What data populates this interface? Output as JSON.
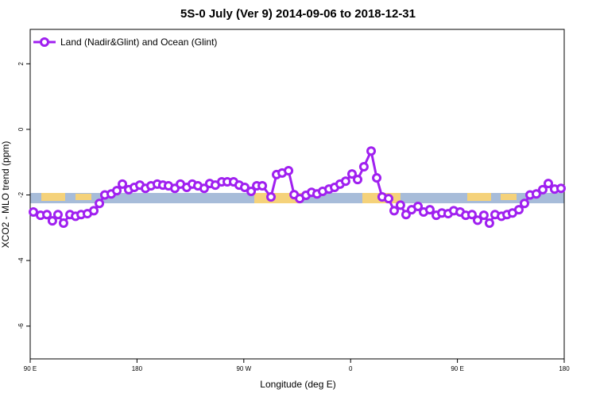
{
  "chart_data": {
    "type": "line",
    "title": "5S-0 July (Ver 9)   2014-09-06 to 2018-12-31",
    "x_label": "Longitude (deg E)",
    "y_label": "XCO2 - MLO trend (ppm)",
    "xlim": [
      90,
      540
    ],
    "ylim": [
      -7,
      3.05
    ],
    "xticks": [
      {
        "value": 90,
        "label": "90 E"
      },
      180,
      {
        "value": 270,
        "label": "90 W"
      },
      {
        "value": 360,
        "label": "0"
      },
      {
        "value": 450,
        "label": "90 E"
      },
      {
        "value": 540,
        "label": "180"
      }
    ],
    "yticks": [
      -6,
      -4,
      -2,
      0,
      2
    ],
    "legend_position": "upper left",
    "series": [
      {
        "name": "Land (Nadir&Glint) and Ocean (Glint)",
        "color": "#a020f0",
        "x": [
          92.7,
          98.7,
          104.1,
          108.7,
          113.4,
          118.1,
          123.5,
          128.2,
          132.9,
          138.2,
          143.6,
          148.3,
          152.9,
          158.3,
          163.0,
          167.7,
          173.0,
          177.7,
          182.4,
          187.1,
          191.8,
          197.1,
          201.8,
          206.5,
          211.9,
          216.6,
          221.9,
          226.6,
          231.3,
          236.6,
          241.3,
          246.0,
          251.4,
          256.1,
          261.4,
          266.1,
          270.8,
          276.2,
          280.9,
          285.6,
          292.9,
          297.6,
          302.3,
          307.7,
          312.4,
          317.1,
          322.4,
          327.1,
          331.7,
          336.4,
          341.8,
          346.5,
          351.1,
          355.8,
          361.2,
          365.9,
          371.2,
          377.3,
          382.0,
          386.6,
          392.0,
          396.7,
          402.0,
          406.7,
          411.4,
          416.8,
          421.5,
          426.8,
          432.2,
          436.9,
          442.2,
          446.9,
          452.3,
          457.0,
          462.3,
          467.0,
          472.3,
          477.0,
          481.7,
          487.1,
          491.8,
          496.4,
          501.8,
          506.5,
          511.2,
          516.5,
          521.9,
          526.6,
          531.9,
          537.3
        ],
        "values": [
          -2.52,
          -2.62,
          -2.6,
          -2.79,
          -2.6,
          -2.86,
          -2.6,
          -2.65,
          -2.6,
          -2.57,
          -2.48,
          -2.26,
          -2.0,
          -1.97,
          -1.87,
          -1.67,
          -1.84,
          -1.77,
          -1.7,
          -1.8,
          -1.72,
          -1.67,
          -1.7,
          -1.72,
          -1.8,
          -1.67,
          -1.77,
          -1.67,
          -1.72,
          -1.8,
          -1.65,
          -1.7,
          -1.6,
          -1.6,
          -1.6,
          -1.7,
          -1.77,
          -1.89,
          -1.72,
          -1.72,
          -2.06,
          -1.38,
          -1.33,
          -1.26,
          -1.99,
          -2.11,
          -2.01,
          -1.92,
          -1.97,
          -1.89,
          -1.82,
          -1.77,
          -1.67,
          -1.58,
          -1.36,
          -1.53,
          -1.14,
          -0.66,
          -1.48,
          -2.06,
          -2.11,
          -2.48,
          -2.31,
          -2.6,
          -2.45,
          -2.35,
          -2.52,
          -2.45,
          -2.62,
          -2.55,
          -2.57,
          -2.48,
          -2.52,
          -2.62,
          -2.6,
          -2.77,
          -2.62,
          -2.86,
          -2.6,
          -2.65,
          -2.6,
          -2.55,
          -2.45,
          -2.26,
          -2.0,
          -1.97,
          -1.84,
          -1.65,
          -1.82,
          -1.8
        ]
      }
    ]
  }
}
